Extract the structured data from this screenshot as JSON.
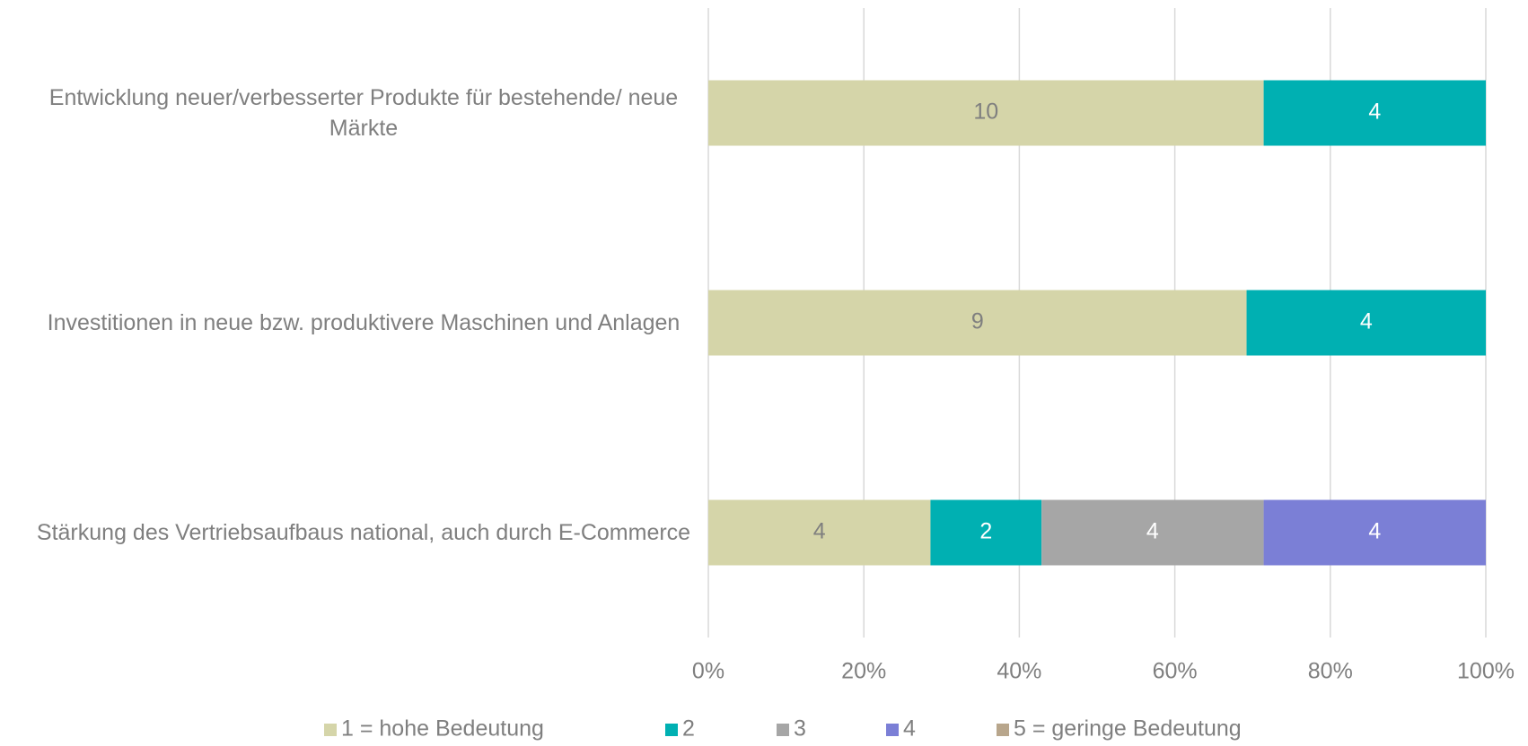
{
  "chart_data": {
    "type": "bar",
    "orientation": "horizontal",
    "stacked": "percent",
    "categories": [
      "Entwicklung neuer/verbesserter Produkte für bestehende/ neue Märkte",
      "Investitionen in neue bzw. produktivere Maschinen und Anlagen",
      "Stärkung des Vertriebsaufbaus national, auch durch E-Commerce"
    ],
    "series": [
      {
        "name": "1 = hohe Bedeutung",
        "color": "#d5d5a9",
        "values": [
          10,
          9,
          4
        ]
      },
      {
        "name": "2",
        "color": "#00b0b2",
        "values": [
          4,
          4,
          2
        ]
      },
      {
        "name": "3",
        "color": "#a6a6a6",
        "values": [
          null,
          null,
          4
        ]
      },
      {
        "name": "4",
        "color": "#7b7fd6",
        "values": [
          null,
          null,
          4
        ]
      },
      {
        "name": "5 = geringe Bedeutung",
        "color": "#b8a68c",
        "values": [
          null,
          null,
          null
        ]
      }
    ],
    "xlim": [
      0,
      100
    ],
    "xticks": [
      {
        "value": 0,
        "label": "0%"
      },
      {
        "value": 20,
        "label": "20%"
      },
      {
        "value": 40,
        "label": "40%"
      },
      {
        "value": 60,
        "label": "60%"
      },
      {
        "value": 80,
        "label": "80%"
      },
      {
        "value": 100,
        "label": "100%"
      }
    ],
    "grid": true,
    "legend": "bottom"
  }
}
